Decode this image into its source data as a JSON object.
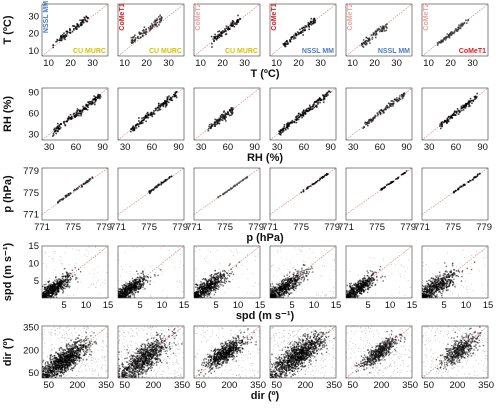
{
  "colors": {
    "NSSL MM": "#4a7cc9",
    "CU MURC": "#d8c400",
    "CoMeT1": "#e02020",
    "CoMeT2": "#f2a0a0",
    "scatter": "#111111",
    "one_to_one": "#e07070"
  },
  "columns": [
    {
      "y_model": "NSSL MM",
      "x_model": "CU MURC"
    },
    {
      "y_model": "CoMeT1",
      "x_model": "CU MURC"
    },
    {
      "y_model": "CoMeT2",
      "x_model": "CU MURC"
    },
    {
      "y_model": "CoMeT1",
      "x_model": "NSSL MM"
    },
    {
      "y_model": "CoMeT2",
      "x_model": "NSSL MM"
    },
    {
      "y_model": "CoMeT2",
      "x_model": "CoMeT1"
    }
  ],
  "chart_data": [
    {
      "variable": "T",
      "type": "scatter",
      "ylabel": "T (ºC)",
      "xlabel": "T (ºC)",
      "xlim": [
        7,
        37
      ],
      "ylim": [
        7,
        37
      ],
      "ticks": [
        10,
        20,
        30
      ],
      "ytick_labels": [
        "10",
        "20",
        "30"
      ],
      "xtick_labels": [
        "10",
        "20",
        "30"
      ],
      "show_model_labels": true,
      "panels": [
        {
          "y_model": "NSSL MM",
          "x_model": "CU MURC",
          "kind": "line",
          "xrange": [
            12,
            28
          ],
          "offset": 1.5,
          "spread": 1.0,
          "density": 90,
          "gray": 0.0
        },
        {
          "y_model": "CoMeT1",
          "x_model": "CU MURC",
          "kind": "line",
          "xrange": [
            13,
            27
          ],
          "offset": 2.0,
          "spread": 1.2,
          "density": 90,
          "gray": 0.2
        },
        {
          "y_model": "CoMeT2",
          "x_model": "CU MURC",
          "kind": "line",
          "xrange": [
            15,
            28
          ],
          "offset": 0.5,
          "spread": 1.0,
          "density": 90,
          "gray": 0.0
        },
        {
          "y_model": "CoMeT1",
          "x_model": "NSSL MM",
          "kind": "line",
          "xrange": [
            13,
            28
          ],
          "offset": 0.0,
          "spread": 1.0,
          "density": 90,
          "gray": 0.0
        },
        {
          "y_model": "CoMeT2",
          "x_model": "NSSL MM",
          "kind": "line",
          "xrange": [
            14,
            26
          ],
          "offset": -1.0,
          "spread": 1.0,
          "density": 80,
          "gray": 0.25
        },
        {
          "y_model": "CoMeT2",
          "x_model": "CoMeT1",
          "kind": "line",
          "xrange": [
            14,
            28
          ],
          "offset": -0.5,
          "spread": 0.8,
          "density": 80,
          "gray": 0.3
        }
      ]
    },
    {
      "variable": "RH",
      "type": "scatter",
      "ylabel": "RH (%)",
      "xlabel": "RH (%)",
      "xlim": [
        22,
        96
      ],
      "ylim": [
        22,
        96
      ],
      "ticks": [
        30,
        60,
        90
      ],
      "ytick_labels": [
        "30",
        "60",
        "90"
      ],
      "xtick_labels": [
        "30",
        "60",
        "90"
      ],
      "show_model_labels": false,
      "panels": [
        {
          "kind": "line",
          "xrange": [
            34,
            88
          ],
          "offset": -2,
          "spread": 2.5,
          "density": 160,
          "gray": 0.0
        },
        {
          "kind": "line",
          "xrange": [
            36,
            88
          ],
          "offset": 0,
          "spread": 2.5,
          "density": 150,
          "gray": 0.0
        },
        {
          "kind": "line",
          "xrange": [
            38,
            66
          ],
          "offset": 0,
          "spread": 3.0,
          "density": 120,
          "gray": 0.15
        },
        {
          "kind": "line",
          "xrange": [
            32,
            90
          ],
          "offset": 0,
          "spread": 2.5,
          "density": 170,
          "gray": 0.0
        },
        {
          "kind": "line",
          "xrange": [
            40,
            88
          ],
          "offset": 0,
          "spread": 2.0,
          "density": 110,
          "gray": 0.2
        },
        {
          "kind": "line",
          "xrange": [
            42,
            84
          ],
          "offset": 0,
          "spread": 2.0,
          "density": 120,
          "gray": 0.0
        }
      ]
    },
    {
      "variable": "p",
      "type": "scatter",
      "ylabel": "p (hPa)",
      "xlabel": "p (hPa)",
      "xlim": [
        771,
        779.5
      ],
      "ylim": [
        770,
        779.5
      ],
      "ticks": [
        771,
        775,
        779
      ],
      "ytick_labels": [
        "771",
        "775",
        "779"
      ],
      "xtick_labels": [
        "771",
        "775",
        "779"
      ],
      "show_model_labels": false,
      "panels": [
        {
          "kind": "line",
          "xrange": [
            773,
            777.5
          ],
          "offset": 0.2,
          "spread": 0.1,
          "density": 60,
          "gray": 0.2
        },
        {
          "kind": "line",
          "xrange": [
            775,
            778
          ],
          "offset": 0.1,
          "spread": 0.1,
          "density": 50,
          "gray": 0.1
        },
        {
          "kind": "line",
          "xrange": [
            774,
            778
          ],
          "offset": 0.0,
          "spread": 0.05,
          "density": 50,
          "gray": 0.45
        },
        {
          "kind": "line",
          "xrange": [
            775,
            778.5
          ],
          "offset": 0.0,
          "spread": 0.08,
          "density": 40,
          "gray": 0.0
        },
        {
          "kind": "line",
          "xrange": [
            775.5,
            778.8
          ],
          "offset": 0.0,
          "spread": 0.08,
          "density": 40,
          "gray": 0.0
        },
        {
          "kind": "line",
          "xrange": [
            775,
            778.5
          ],
          "offset": 0.0,
          "spread": 0.08,
          "density": 40,
          "gray": 0.0
        }
      ]
    },
    {
      "variable": "spd",
      "type": "scatter",
      "ylabel": "spd (m s⁻¹)",
      "xlabel": "spd (m s⁻¹)",
      "xlim": [
        0,
        15
      ],
      "ylim": [
        0,
        15
      ],
      "ticks": [
        5,
        10,
        15
      ],
      "ytick_labels": [
        "5",
        "10",
        "15"
      ],
      "xtick_labels": [
        "5",
        "10",
        "15"
      ],
      "show_model_labels": false,
      "panels": [
        {
          "kind": "cloud",
          "center": [
            2.5,
            2.5
          ],
          "sx": 2.0,
          "sy": 1.6,
          "density": 650,
          "tail": 80,
          "gray": 0.0
        },
        {
          "kind": "cloud",
          "center": [
            2.5,
            2.3
          ],
          "sx": 2.0,
          "sy": 1.5,
          "density": 600,
          "tail": 60,
          "gray": 0.0
        },
        {
          "kind": "cloud",
          "center": [
            3.0,
            3.0
          ],
          "sx": 2.2,
          "sy": 1.8,
          "density": 620,
          "tail": 60,
          "gray": 0.0
        },
        {
          "kind": "cloud",
          "center": [
            3.0,
            2.8
          ],
          "sx": 2.4,
          "sy": 1.8,
          "density": 650,
          "tail": 90,
          "gray": 0.0
        },
        {
          "kind": "cloud",
          "center": [
            2.8,
            2.8
          ],
          "sx": 2.0,
          "sy": 1.6,
          "density": 560,
          "tail": 40,
          "gray": 0.0
        },
        {
          "kind": "cloud",
          "center": [
            3.0,
            3.0
          ],
          "sx": 2.5,
          "sy": 2.0,
          "density": 600,
          "tail": 60,
          "gray": 0.0
        }
      ]
    },
    {
      "variable": "dir",
      "type": "scatter",
      "ylabel": "dir (º)",
      "xlabel": "dir (º)",
      "xlim": [
        15,
        360
      ],
      "ylim": [
        15,
        360
      ],
      "ticks": [
        50,
        200,
        350
      ],
      "ytick_labels": [
        "50",
        "200",
        "350"
      ],
      "xtick_labels": [
        "50",
        "200",
        "350"
      ],
      "show_model_labels": false,
      "panels": [
        {
          "kind": "cloud",
          "center": [
            130,
            130
          ],
          "sx": 60,
          "sy": 55,
          "density": 1100,
          "tail": 300,
          "gray": 0.0
        },
        {
          "kind": "cloud",
          "center": [
            150,
            140
          ],
          "sx": 65,
          "sy": 60,
          "density": 900,
          "tail": 350,
          "gray": 0.05
        },
        {
          "kind": "cloud",
          "center": [
            180,
            180
          ],
          "sx": 50,
          "sy": 45,
          "density": 700,
          "tail": 200,
          "gray": 0.0
        },
        {
          "kind": "cloud",
          "center": [
            160,
            160
          ],
          "sx": 65,
          "sy": 60,
          "density": 1100,
          "tail": 350,
          "gray": 0.0
        },
        {
          "kind": "cloud",
          "center": [
            190,
            185
          ],
          "sx": 45,
          "sy": 40,
          "density": 550,
          "tail": 250,
          "gray": 0.1
        },
        {
          "kind": "cloud",
          "center": [
            215,
            205
          ],
          "sx": 45,
          "sy": 50,
          "density": 500,
          "tail": 250,
          "gray": 0.1
        }
      ]
    }
  ]
}
